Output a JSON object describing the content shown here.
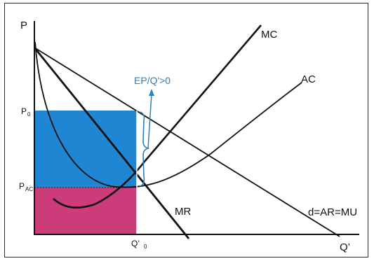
{
  "diagram": {
    "axes": {
      "y_label": "P",
      "x_label": "Q’"
    },
    "ticks": {
      "p0_main": "P",
      "p0_sub": "0",
      "pac_main": "P",
      "pac_sub": "AC",
      "q0": "Q’",
      "q0_sub": "0"
    },
    "curves": {
      "mc": "MC",
      "ac": "AC",
      "mr": "MR",
      "demand": "d=AR=MU"
    },
    "annotation": "EP/Q'>0",
    "colors": {
      "profit_area": "#1e86d2",
      "cost_area": "#cc3c7a",
      "annotation": "#2f7fb8",
      "curves": "#111111"
    }
  }
}
